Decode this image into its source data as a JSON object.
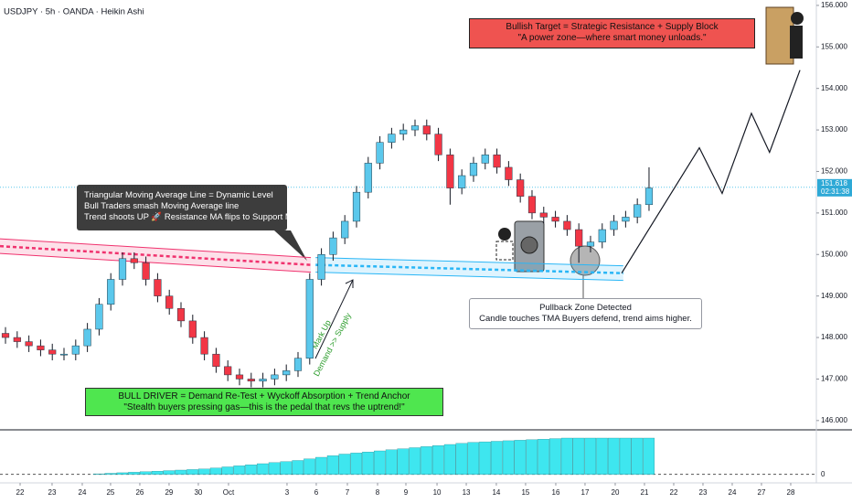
{
  "chart_data": {
    "type": "candlestick",
    "title": "USDJPY · 5h · OANDA · Heikin Ashi",
    "x": [
      0,
      1,
      2,
      3,
      4,
      5,
      6,
      7,
      8,
      9,
      10,
      11,
      12,
      13,
      14,
      15,
      16,
      17,
      18,
      19,
      20,
      21,
      22,
      23,
      24,
      25,
      26,
      27,
      28,
      29,
      30,
      31,
      32,
      33,
      34,
      35,
      36,
      37,
      38,
      39,
      40,
      41,
      42,
      43,
      44,
      45,
      46,
      47,
      48,
      49,
      50,
      51,
      52,
      53,
      54,
      55
    ],
    "open": [
      148.1,
      148.0,
      147.9,
      147.8,
      147.7,
      147.6,
      147.6,
      147.8,
      148.2,
      148.8,
      149.4,
      149.9,
      149.8,
      149.4,
      149.0,
      148.7,
      148.4,
      148.0,
      147.6,
      147.3,
      147.1,
      147.0,
      146.95,
      147.0,
      147.1,
      147.2,
      147.5,
      149.4,
      150.0,
      150.4,
      150.8,
      151.5,
      152.2,
      152.7,
      152.9,
      153.0,
      153.1,
      152.9,
      152.4,
      151.6,
      151.9,
      152.2,
      152.4,
      152.1,
      151.8,
      151.4,
      151.0,
      150.9,
      150.8,
      150.6,
      150.2,
      150.3,
      150.6,
      150.8,
      150.9,
      151.2
    ],
    "high": [
      148.25,
      148.15,
      148.05,
      147.95,
      147.85,
      147.75,
      147.95,
      148.35,
      148.95,
      149.55,
      150.05,
      150.05,
      149.95,
      149.55,
      149.15,
      148.85,
      148.55,
      148.15,
      147.75,
      147.45,
      147.25,
      147.15,
      147.15,
      147.25,
      147.35,
      147.65,
      149.55,
      150.15,
      150.55,
      150.95,
      151.65,
      152.35,
      152.85,
      153.05,
      153.15,
      153.25,
      153.25,
      153.05,
      152.55,
      152.05,
      152.35,
      152.55,
      152.55,
      152.25,
      151.95,
      151.55,
      151.15,
      151.05,
      150.95,
      150.75,
      150.45,
      150.75,
      150.95,
      151.05,
      151.35,
      152.1
    ],
    "low": [
      147.85,
      147.75,
      147.65,
      147.55,
      147.45,
      147.45,
      147.45,
      147.65,
      148.05,
      148.65,
      149.25,
      149.65,
      149.25,
      148.85,
      148.55,
      148.25,
      147.85,
      147.45,
      147.15,
      146.95,
      146.85,
      146.8,
      146.8,
      146.85,
      146.95,
      147.05,
      147.35,
      149.25,
      149.85,
      150.25,
      150.65,
      151.35,
      152.05,
      152.55,
      152.75,
      152.85,
      152.75,
      152.25,
      151.2,
      151.45,
      151.75,
      152.05,
      151.95,
      151.65,
      151.25,
      150.85,
      150.75,
      150.65,
      150.45,
      149.8,
      150.05,
      150.15,
      150.45,
      150.65,
      150.75,
      151.05
    ],
    "close": [
      148.0,
      147.9,
      147.8,
      147.7,
      147.6,
      147.6,
      147.8,
      148.2,
      148.8,
      149.4,
      149.9,
      149.8,
      149.4,
      149.0,
      148.7,
      148.4,
      148.0,
      147.6,
      147.3,
      147.1,
      147.0,
      146.95,
      147.0,
      147.1,
      147.2,
      147.5,
      149.4,
      150.0,
      150.4,
      150.8,
      151.5,
      152.2,
      152.7,
      152.9,
      153.0,
      153.1,
      152.9,
      152.4,
      151.6,
      151.9,
      152.2,
      152.4,
      152.1,
      151.8,
      151.4,
      151.0,
      150.9,
      150.8,
      150.6,
      150.2,
      150.3,
      150.6,
      150.8,
      150.9,
      151.2,
      151.6
    ],
    "up_color": "#5bc8ec",
    "down_color": "#f23645",
    "xlim": [
      -0.47,
      69.3
    ],
    "xticks": [
      {
        "value": 1.25,
        "label": "22"
      },
      {
        "value": 3.98,
        "label": "23"
      },
      {
        "value": 6.56,
        "label": "24"
      },
      {
        "value": 8.98,
        "label": "25"
      },
      {
        "value": 11.48,
        "label": "26"
      },
      {
        "value": 13.98,
        "label": "29"
      },
      {
        "value": 16.48,
        "label": "30"
      },
      {
        "value": 19.06,
        "label": "Oct"
      },
      {
        "value": 24.06,
        "label": "3"
      },
      {
        "value": 26.56,
        "label": "6"
      },
      {
        "value": 29.22,
        "label": "7"
      },
      {
        "value": 31.8,
        "label": "8"
      },
      {
        "value": 34.22,
        "label": "9"
      },
      {
        "value": 36.88,
        "label": "10"
      },
      {
        "value": 39.38,
        "label": "13"
      },
      {
        "value": 41.95,
        "label": "14"
      },
      {
        "value": 44.45,
        "label": "15"
      },
      {
        "value": 47.03,
        "label": "16"
      },
      {
        "value": 49.53,
        "label": "17"
      },
      {
        "value": 52.11,
        "label": "20"
      },
      {
        "value": 54.61,
        "label": "21"
      },
      {
        "value": 57.11,
        "label": "22"
      },
      {
        "value": 59.61,
        "label": "23"
      },
      {
        "value": 62.11,
        "label": "24"
      },
      {
        "value": 64.61,
        "label": "27"
      },
      {
        "value": 67.11,
        "label": "28"
      }
    ],
    "ylim": [
      145.82,
      156.13
    ],
    "yticks": [
      {
        "value": 146,
        "label": "146.000"
      },
      {
        "value": 147,
        "label": "147.000"
      },
      {
        "value": 148,
        "label": "148.000"
      },
      {
        "value": 149,
        "label": "149.000"
      },
      {
        "value": 150,
        "label": "150.000"
      },
      {
        "value": 151,
        "label": "151.000"
      },
      {
        "value": 152,
        "label": "152.000"
      },
      {
        "value": 153,
        "label": "153.000"
      },
      {
        "value": 154,
        "label": "154.000"
      },
      {
        "value": 155,
        "label": "155.000"
      },
      {
        "value": 156,
        "label": "156.000"
      }
    ],
    "grid": false,
    "last_price": 151.618,
    "countdown": "02:31:38",
    "resistance_band": {
      "x": [
        -0.47,
        26.1
      ],
      "y": [
        150.2,
        149.75
      ],
      "color": "#f0326e"
    },
    "support_band": {
      "x": [
        26.5,
        52.8
      ],
      "y": [
        149.75,
        149.55
      ],
      "color": "#29b6f6"
    },
    "projection": {
      "x": [
        52.66,
        59.3,
        61.25,
        63.75,
        65.3,
        67.9
      ],
      "y": [
        149.55,
        152.57,
        151.47,
        153.4,
        152.46,
        154.44
      ],
      "color": "#131722"
    },
    "indicator": {
      "values": [
        0,
        0,
        0,
        0,
        0,
        0,
        0,
        0,
        0.05,
        0.1,
        0.15,
        0.2,
        0.25,
        0.3,
        0.35,
        0.4,
        0.45,
        0.5,
        0.6,
        0.7,
        0.8,
        0.9,
        1.0,
        1.1,
        1.2,
        1.3,
        1.45,
        1.6,
        1.75,
        1.9,
        2.0,
        2.1,
        2.2,
        2.3,
        2.4,
        2.5,
        2.6,
        2.7,
        2.8,
        2.9,
        3.0,
        3.05,
        3.1,
        3.15,
        3.2,
        3.25,
        3.3,
        3.35,
        3.4,
        3.4,
        3.4,
        3.4,
        3.4,
        3.4,
        3.4,
        3.4
      ],
      "color": "#3ee6ef",
      "ylim": [
        -0.8,
        4
      ],
      "yticks": [
        0
      ]
    },
    "annotations": {
      "tma_note": [
        "Triangular Moving Average Line = Dynamic Level",
        "Bull Traders smash Moving Average line",
        "Trend shoots UP 🚀 Resistance MA flips to Support MA"
      ],
      "target_note": [
        "Bullish Target = Strategic Resistance + Supply Block",
        "\"A power zone—where smart money unloads.\""
      ],
      "pullback_note": [
        "Pullback Zone Detected",
        "Candle touches TMA Buyers defend, trend aims higher."
      ],
      "driver_note": [
        "BULL DRIVER = Demand Re-Test + Wyckoff Absorption + Trend Anchor",
        "\"Stealth buyers pressing gas—this is the pedal that revs the uptrend!\""
      ],
      "markup": [
        "Mark Up",
        "Demand >> Supply"
      ]
    }
  }
}
